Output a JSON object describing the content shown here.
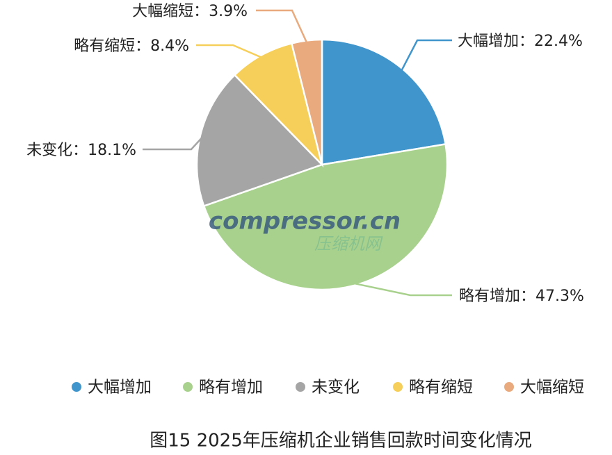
{
  "chart_data": {
    "type": "pie",
    "title": "图15 2025年压缩机企业销售回款时间变化情况",
    "categories": [
      "大幅增加",
      "略有增加",
      "未变化",
      "略有缩短",
      "大幅缩短"
    ],
    "values": [
      22.4,
      47.3,
      18.1,
      8.4,
      3.9
    ],
    "value_labels": [
      "大幅增加：22.4%",
      "略有增加：47.3%",
      "未变化：18.1%",
      "略有缩短：8.4%",
      "大幅缩短：3.9%"
    ],
    "colors": [
      "#3f95cc",
      "#a9d18e",
      "#a5a5a5",
      "#f6cf5a",
      "#e9aa7e"
    ],
    "watermark": "compressor.cn",
    "watermark_sub": "压缩机网"
  }
}
